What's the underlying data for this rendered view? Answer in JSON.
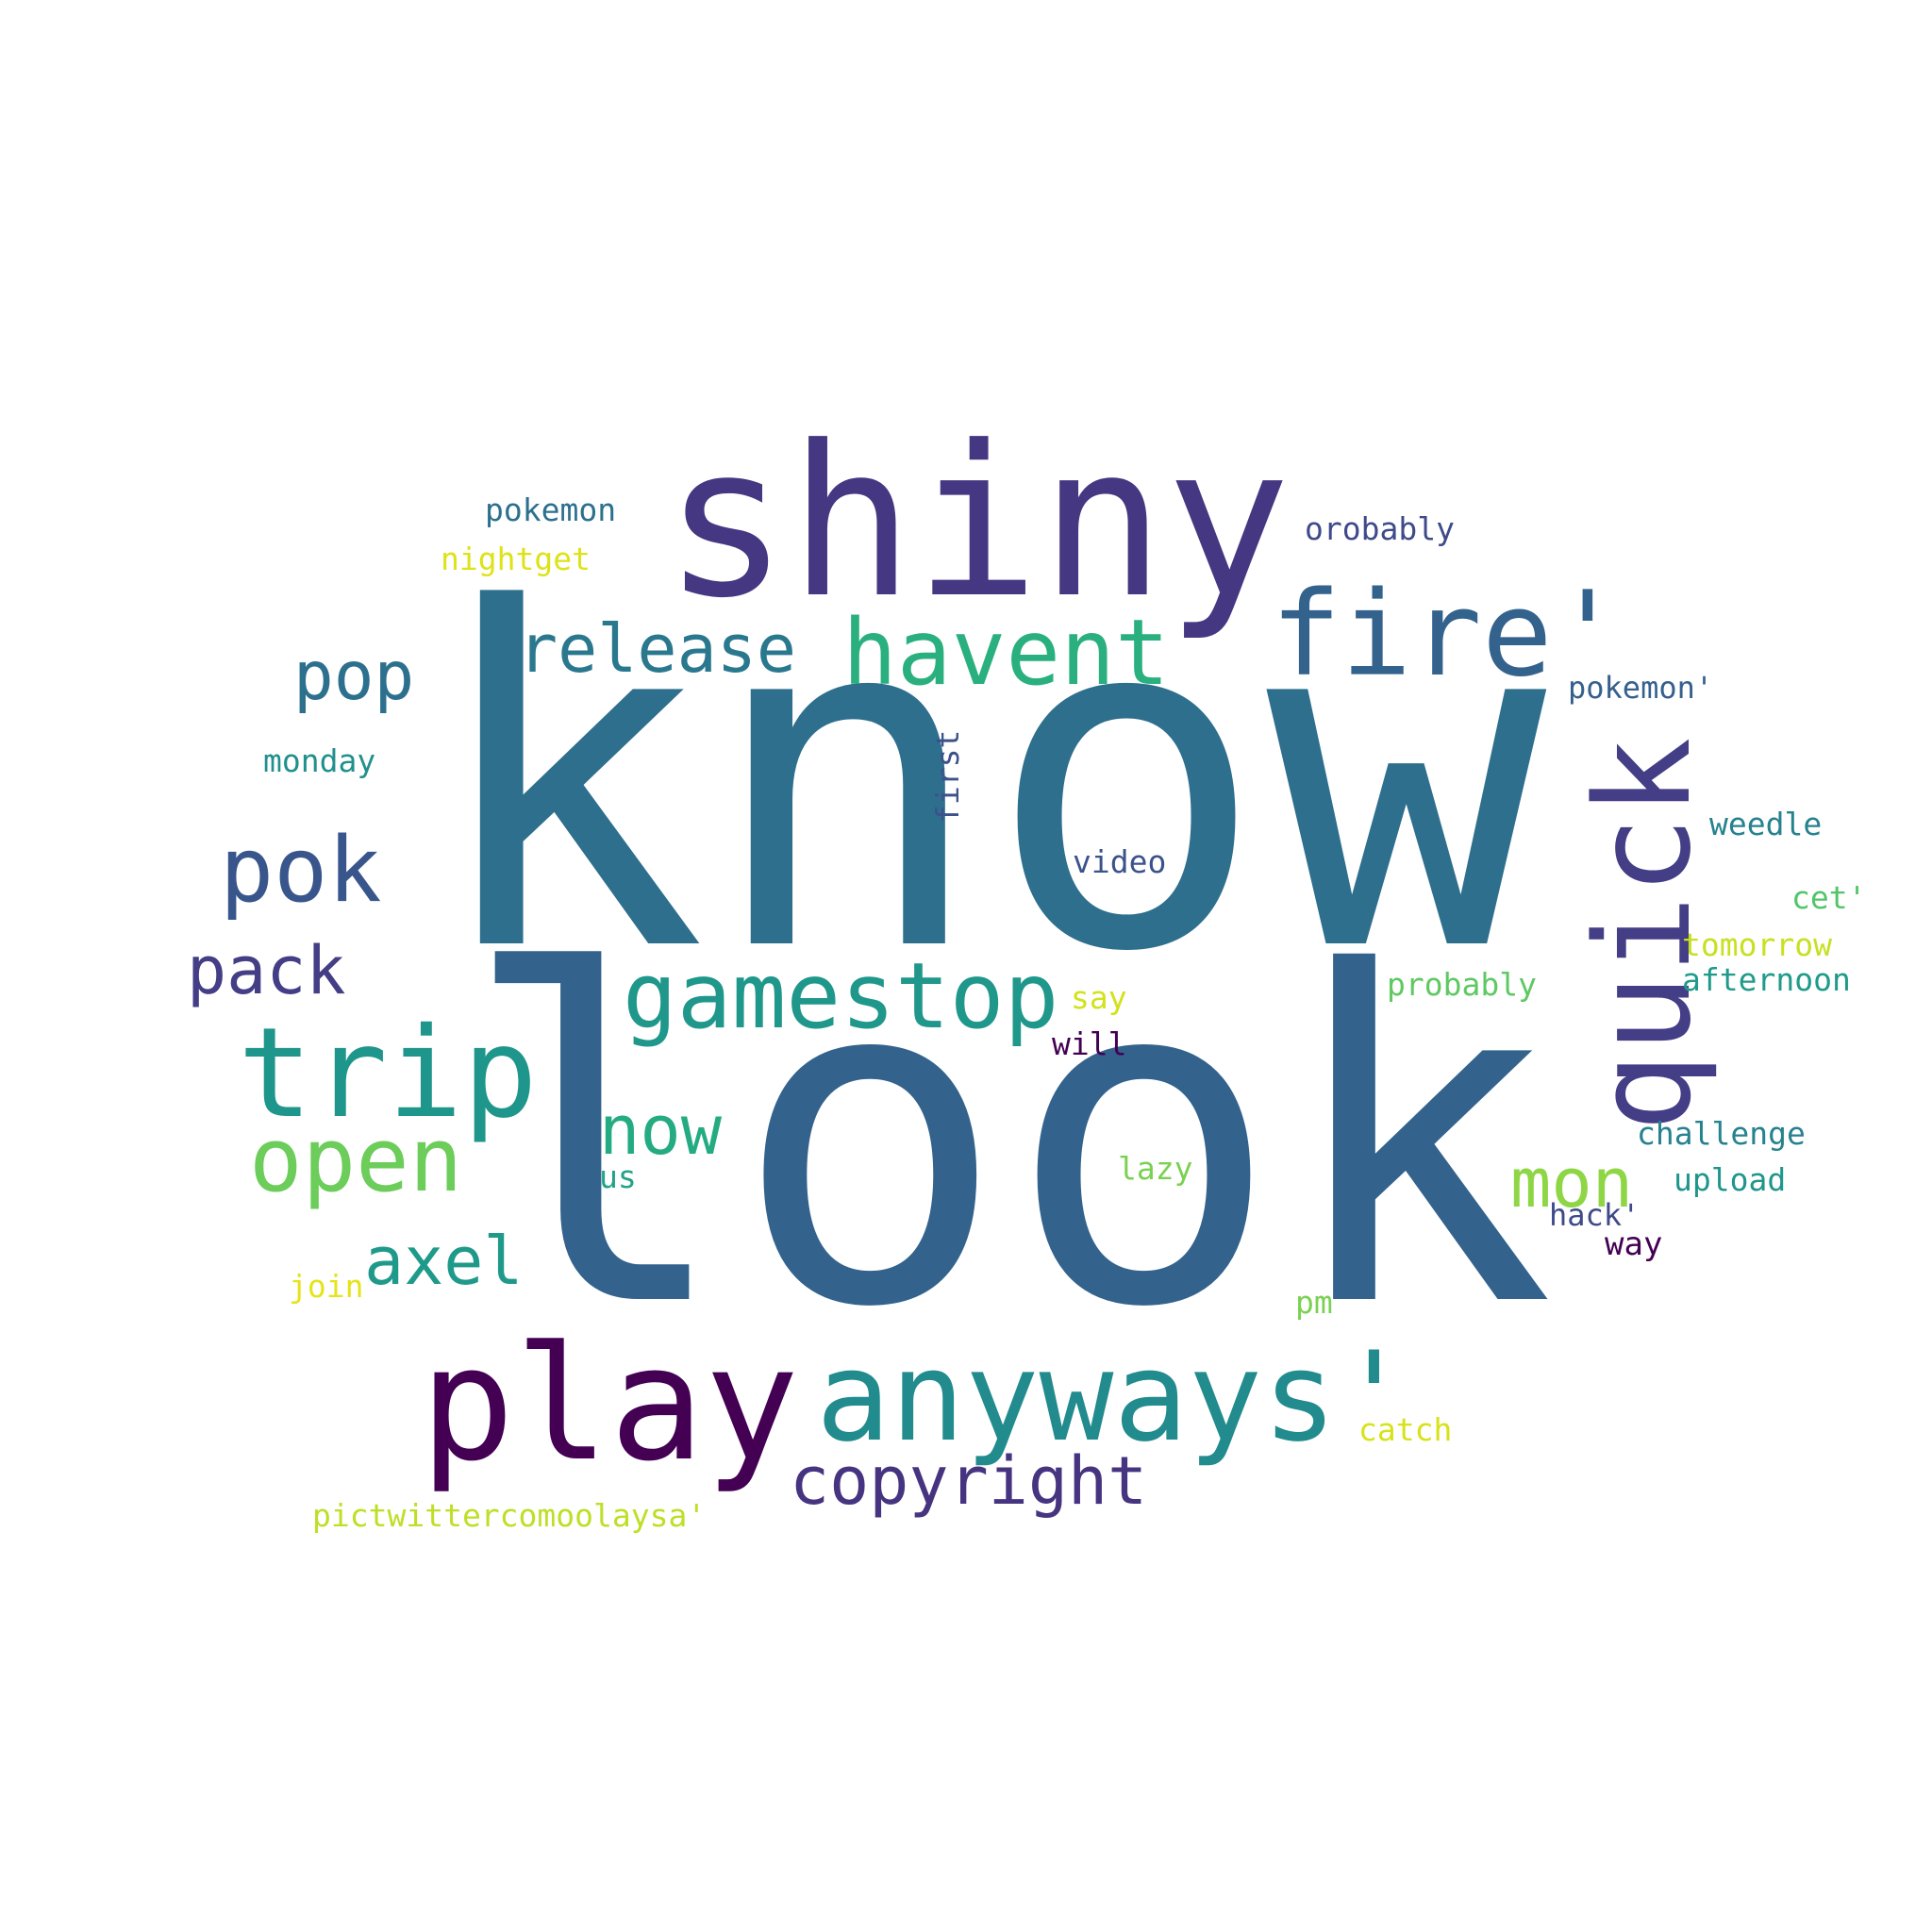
{
  "words": [
    {
      "text": "look",
      "color": "#33638d"
    },
    {
      "text": "know",
      "color": "#2e6f8e"
    },
    {
      "text": "shiny",
      "color": "#453781"
    },
    {
      "text": "fire'",
      "color": "#33638d"
    },
    {
      "text": "play",
      "color": "#440154"
    },
    {
      "text": "anyways'",
      "color": "#228b8d"
    },
    {
      "text": "quick",
      "color": "#433e85"
    },
    {
      "text": "trip",
      "color": "#1f968b"
    },
    {
      "text": "havent",
      "color": "#2ab07f"
    },
    {
      "text": "gamestop",
      "color": "#1f978b"
    },
    {
      "text": "open",
      "color": "#6ccd5a"
    },
    {
      "text": "pok",
      "color": "#39568c"
    },
    {
      "text": "release",
      "color": "#2a788e"
    },
    {
      "text": "copyright",
      "color": "#463480"
    },
    {
      "text": "pop",
      "color": "#2d708e"
    },
    {
      "text": "pack",
      "color": "#433e85"
    },
    {
      "text": "now",
      "color": "#25ab82"
    },
    {
      "text": "axel",
      "color": "#1f9a8a"
    },
    {
      "text": "mon",
      "color": "#8ed645"
    },
    {
      "text": "pokemon",
      "color": "#2d708e"
    },
    {
      "text": "nightget",
      "color": "#dde318"
    },
    {
      "text": "orobably",
      "color": "#3e4a89"
    },
    {
      "text": "pokemon'",
      "color": "#35608d"
    },
    {
      "text": "monday",
      "color": "#21908d"
    },
    {
      "text": "first",
      "color": "#3b528b"
    },
    {
      "text": "video",
      "color": "#3b528b"
    },
    {
      "text": "weedle",
      "color": "#26828e"
    },
    {
      "text": "cet'",
      "color": "#52c569"
    },
    {
      "text": "tomorrow",
      "color": "#c8e020"
    },
    {
      "text": "afternoon",
      "color": "#1e9b8a"
    },
    {
      "text": "probably",
      "color": "#5ec962"
    },
    {
      "text": "say",
      "color": "#d2e21b"
    },
    {
      "text": "will",
      "color": "#440154"
    },
    {
      "text": "challenge",
      "color": "#26828e"
    },
    {
      "text": "upload",
      "color": "#1f968b"
    },
    {
      "text": "lazy",
      "color": "#7ad151"
    },
    {
      "text": "us",
      "color": "#20a386"
    },
    {
      "text": "hack'",
      "color": "#3e4a89"
    },
    {
      "text": "way",
      "color": "#440154"
    },
    {
      "text": "join",
      "color": "#e5e419"
    },
    {
      "text": "pm",
      "color": "#7ad151"
    },
    {
      "text": "catch",
      "color": "#d8e219"
    },
    {
      "text": "pictwittercomoolaysa'",
      "color": "#bddf26"
    }
  ]
}
